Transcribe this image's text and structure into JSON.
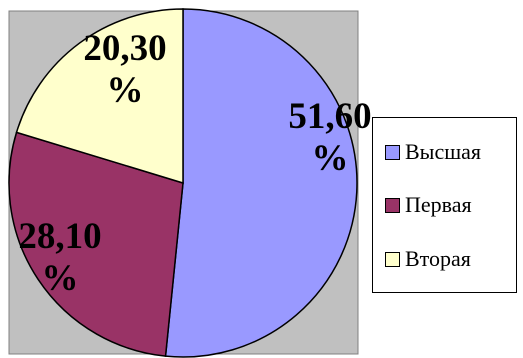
{
  "chart_data": {
    "type": "pie",
    "categories": [
      "Высшая",
      "Первая",
      "Вторая"
    ],
    "values": [
      51.6,
      28.1,
      20.3
    ],
    "data_labels": [
      [
        "51,60",
        "%"
      ],
      [
        "28,10",
        "%"
      ],
      [
        "20,30",
        "%"
      ]
    ],
    "colors": [
      "#9999ff",
      "#993366",
      "#ffffcc"
    ],
    "plot_background": "#c0c0c0",
    "legend_position": "right",
    "start_angle_deg": 0,
    "direction": "clockwise"
  }
}
